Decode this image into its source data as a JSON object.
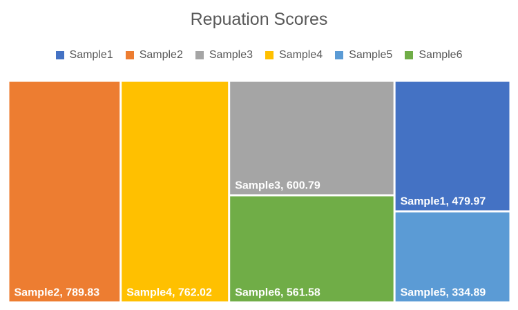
{
  "chart_data": {
    "type": "treemap",
    "title": "Repuation Scores",
    "series": [
      {
        "name": "Sample1",
        "value": 479.97,
        "color": "#4472C4"
      },
      {
        "name": "Sample2",
        "value": 789.83,
        "color": "#ED7D31"
      },
      {
        "name": "Sample3",
        "value": 600.79,
        "color": "#A5A5A5"
      },
      {
        "name": "Sample4",
        "value": 762.02,
        "color": "#FFC000"
      },
      {
        "name": "Sample5",
        "value": 334.89,
        "color": "#5B9BD5"
      },
      {
        "name": "Sample6",
        "value": 561.58,
        "color": "#70AD47"
      }
    ],
    "layout_columns": [
      [
        "Sample2"
      ],
      [
        "Sample4"
      ],
      [
        "Sample3",
        "Sample6"
      ],
      [
        "Sample1",
        "Sample5"
      ]
    ],
    "legend_position": "top",
    "data_labels": "name, value"
  }
}
